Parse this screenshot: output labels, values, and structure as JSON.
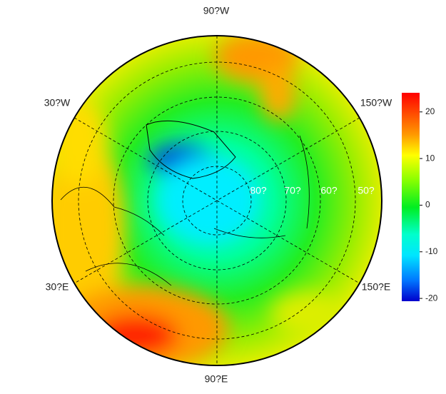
{
  "map": {
    "longitude_labels": {
      "top": "90?W",
      "upper_left": "30?W",
      "upper_right": "150?W",
      "lower_left": "30?E",
      "lower_right": "150?E",
      "bottom": "90?E"
    },
    "latitude_labels": [
      "80?",
      "70?",
      "60?",
      "50?"
    ],
    "colorbar": {
      "clim": [
        -20.6,
        24.1
      ],
      "ticks": [
        20,
        10,
        0,
        -10,
        -20
      ]
    }
  }
}
